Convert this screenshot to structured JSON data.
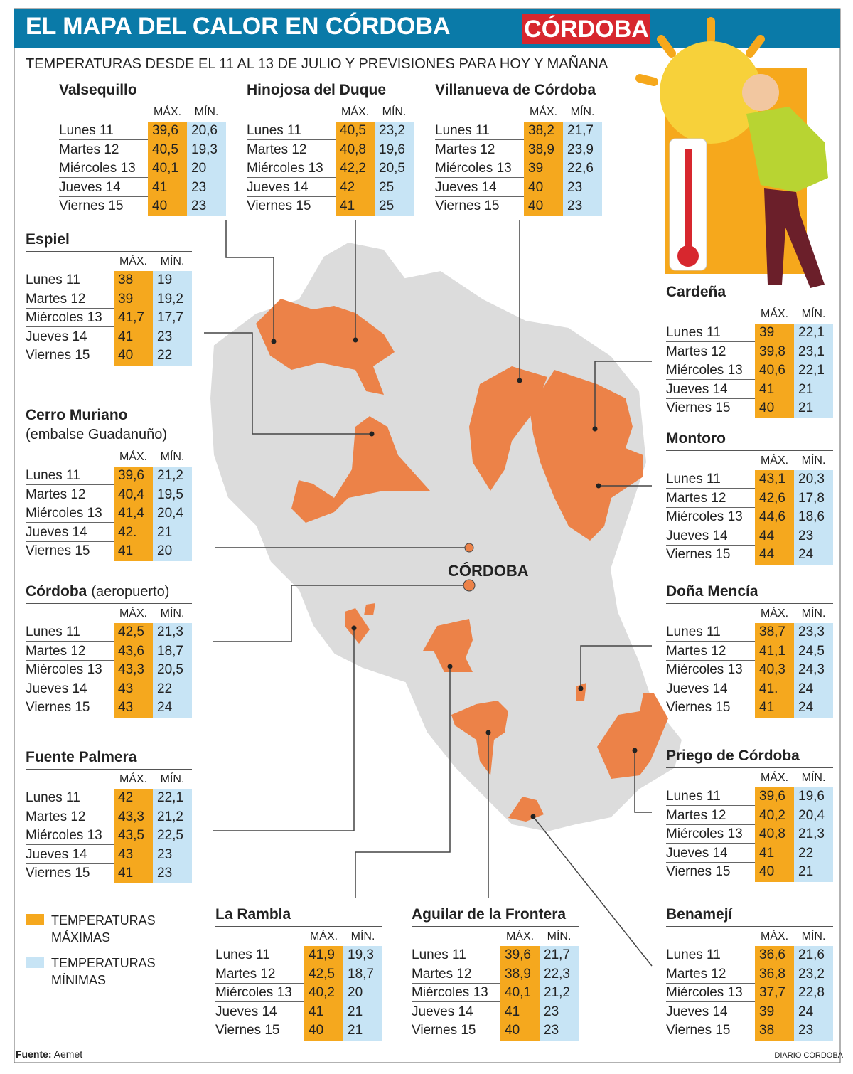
{
  "header": {
    "title": "EL MAPA DEL CALOR EN CÓRDOBA",
    "brand": "CÓRDOBA",
    "subtitle": "TEMPERATURAS DESDE EL 11 AL 13 DE JULIO  Y PREVISIONES PARA HOY Y MAÑANA"
  },
  "columns": [
    "MÁX.",
    "MÍN."
  ],
  "days": [
    "Lunes 11",
    "Martes 12",
    "Miércoles 13",
    "Jueves 14",
    "Viernes 15"
  ],
  "stations": [
    {
      "name": "Valsequillo",
      "max": [
        "39,6",
        "40,5",
        "40,1",
        "41",
        "40"
      ],
      "min": [
        "20,6",
        "19,3",
        "20",
        "23",
        "23"
      ]
    },
    {
      "name": "Hinojosa del Duque",
      "max": [
        "40,5",
        "40,8",
        "42,2",
        "42",
        "41"
      ],
      "min": [
        "23,2",
        "19,6",
        "20,5",
        "25",
        "25"
      ]
    },
    {
      "name": "Villanueva de Córdoba",
      "max": [
        "38,2",
        "38,9",
        "39",
        "40",
        "40"
      ],
      "min": [
        "21,7",
        "23,9",
        "22,6",
        "23",
        "23"
      ]
    },
    {
      "name": "Espiel",
      "max": [
        "38",
        "39",
        "41,7",
        "41",
        "40"
      ],
      "min": [
        "19",
        "19,2",
        "17,7",
        "23",
        "22"
      ]
    },
    {
      "name": "Cerro Muriano",
      "note": "(embalse Guadanuño)",
      "max": [
        "39,6",
        "40,4",
        "41,4",
        "42.",
        "41"
      ],
      "min": [
        "21,2",
        "19,5",
        "20,4",
        "21",
        "20"
      ]
    },
    {
      "name": "Córdoba",
      "note": "(aeropuerto)",
      "max": [
        "42,5",
        "43,6",
        "43,3",
        "43",
        "43"
      ],
      "min": [
        "21,3",
        "18,7",
        "20,5",
        "22",
        "24"
      ]
    },
    {
      "name": "Fuente Palmera",
      "max": [
        "42",
        "43,3",
        "43,5",
        "43",
        "41"
      ],
      "min": [
        "22,1",
        "21,2",
        "22,5",
        "23",
        "23"
      ]
    },
    {
      "name": "La Rambla",
      "max": [
        "41,9",
        "42,5",
        "40,2",
        "41",
        "40"
      ],
      "min": [
        "19,3",
        "18,7",
        "20",
        "21",
        "21"
      ]
    },
    {
      "name": "Aguilar de la Frontera",
      "max": [
        "39,6",
        "38,9",
        "40,1",
        "41",
        "40"
      ],
      "min": [
        "21,7",
        "22,3",
        "21,2",
        "23",
        "23"
      ]
    },
    {
      "name": "Benamejí",
      "max": [
        "36,6",
        "36,8",
        "37,7",
        "39",
        "38"
      ],
      "min": [
        "21,6",
        "23,2",
        "22,8",
        "24",
        "23"
      ]
    },
    {
      "name": "Cardeña",
      "max": [
        "39",
        "39,8",
        "40,6",
        "41",
        "40"
      ],
      "min": [
        "22,1",
        "23,1",
        "22,1",
        "21",
        "21"
      ]
    },
    {
      "name": "Montoro",
      "max": [
        "43,1",
        "42,6",
        "44,6",
        "44",
        "44"
      ],
      "min": [
        "20,3",
        "17,8",
        "18,6",
        "23",
        "24"
      ]
    },
    {
      "name": "Doña Mencía",
      "max": [
        "38,7",
        "41,1",
        "40,3",
        "41.",
        "41"
      ],
      "min": [
        "23,3",
        "24,5",
        "24,3",
        "24",
        "24"
      ]
    },
    {
      "name": "Priego de Córdoba",
      "max": [
        "39,6",
        "40,2",
        "40,8",
        "41",
        "40"
      ],
      "min": [
        "19,6",
        "20,4",
        "21,3",
        "22",
        "21"
      ]
    }
  ],
  "map": {
    "city_label": "CÓRDOBA"
  },
  "legend": {
    "max": "TEMPERATURAS MÁXIMAS",
    "min": "TEMPERATURAS MÍNIMAS"
  },
  "footer": {
    "source_label": "Fuente:",
    "source": "Aemet",
    "credit": "DIARIO CÓRDOBA"
  }
}
